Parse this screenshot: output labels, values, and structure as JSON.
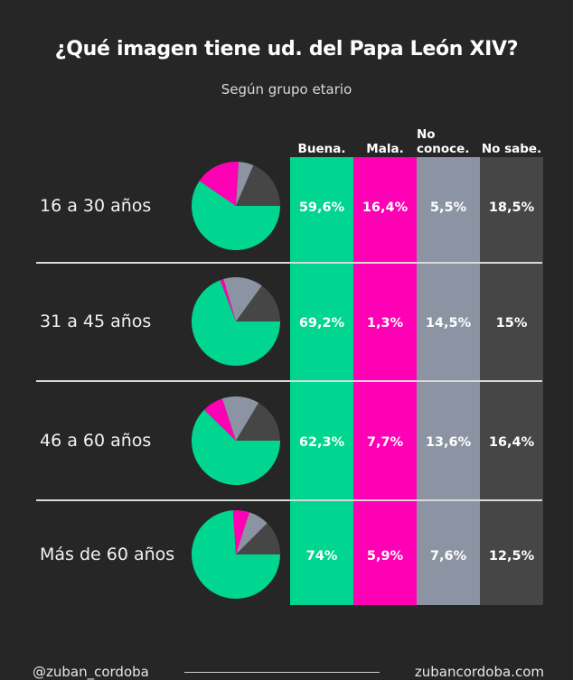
{
  "title": "¿Qué imagen tiene ud. del Papa León XIV?",
  "subtitle": "Según grupo etario",
  "colors": {
    "buena": "#00d68f",
    "mala": "#ff00b4",
    "no_conoce": "#8c94a3",
    "no_sabe": "#464646"
  },
  "footer": {
    "left": "@zuban_cordoba",
    "right": "zubancordoba.com"
  },
  "chart_data": {
    "type": "table",
    "title": "¿Qué imagen tiene ud. del Papa León XIV?",
    "subtitle": "Según grupo etario",
    "columns": [
      {
        "key": "buena",
        "label": "Buena."
      },
      {
        "key": "mala",
        "label": "Mala."
      },
      {
        "key": "no_conoce",
        "label": "No conoce."
      },
      {
        "key": "no_sabe",
        "label": "No sabe."
      }
    ],
    "rows": [
      {
        "group": "16 a 30 años",
        "values": [
          59.6,
          16.4,
          5.5,
          18.5
        ],
        "labels": [
          "59,6%",
          "16,4%",
          "5,5%",
          "18,5%"
        ]
      },
      {
        "group": "31 a 45 años",
        "values": [
          69.2,
          1.3,
          14.5,
          15
        ],
        "labels": [
          "69,2%",
          "1,3%",
          "14,5%",
          "15%"
        ]
      },
      {
        "group": "46 a 60 años",
        "values": [
          62.3,
          7.7,
          13.6,
          16.4
        ],
        "labels": [
          "62,3%",
          "7,7%",
          "13,6%",
          "16,4%"
        ]
      },
      {
        "group": "Más de 60 años",
        "values": [
          74,
          5.9,
          7.6,
          12.5
        ],
        "labels": [
          "74%",
          "5,9%",
          "7,6%",
          "12,5%"
        ]
      }
    ]
  }
}
